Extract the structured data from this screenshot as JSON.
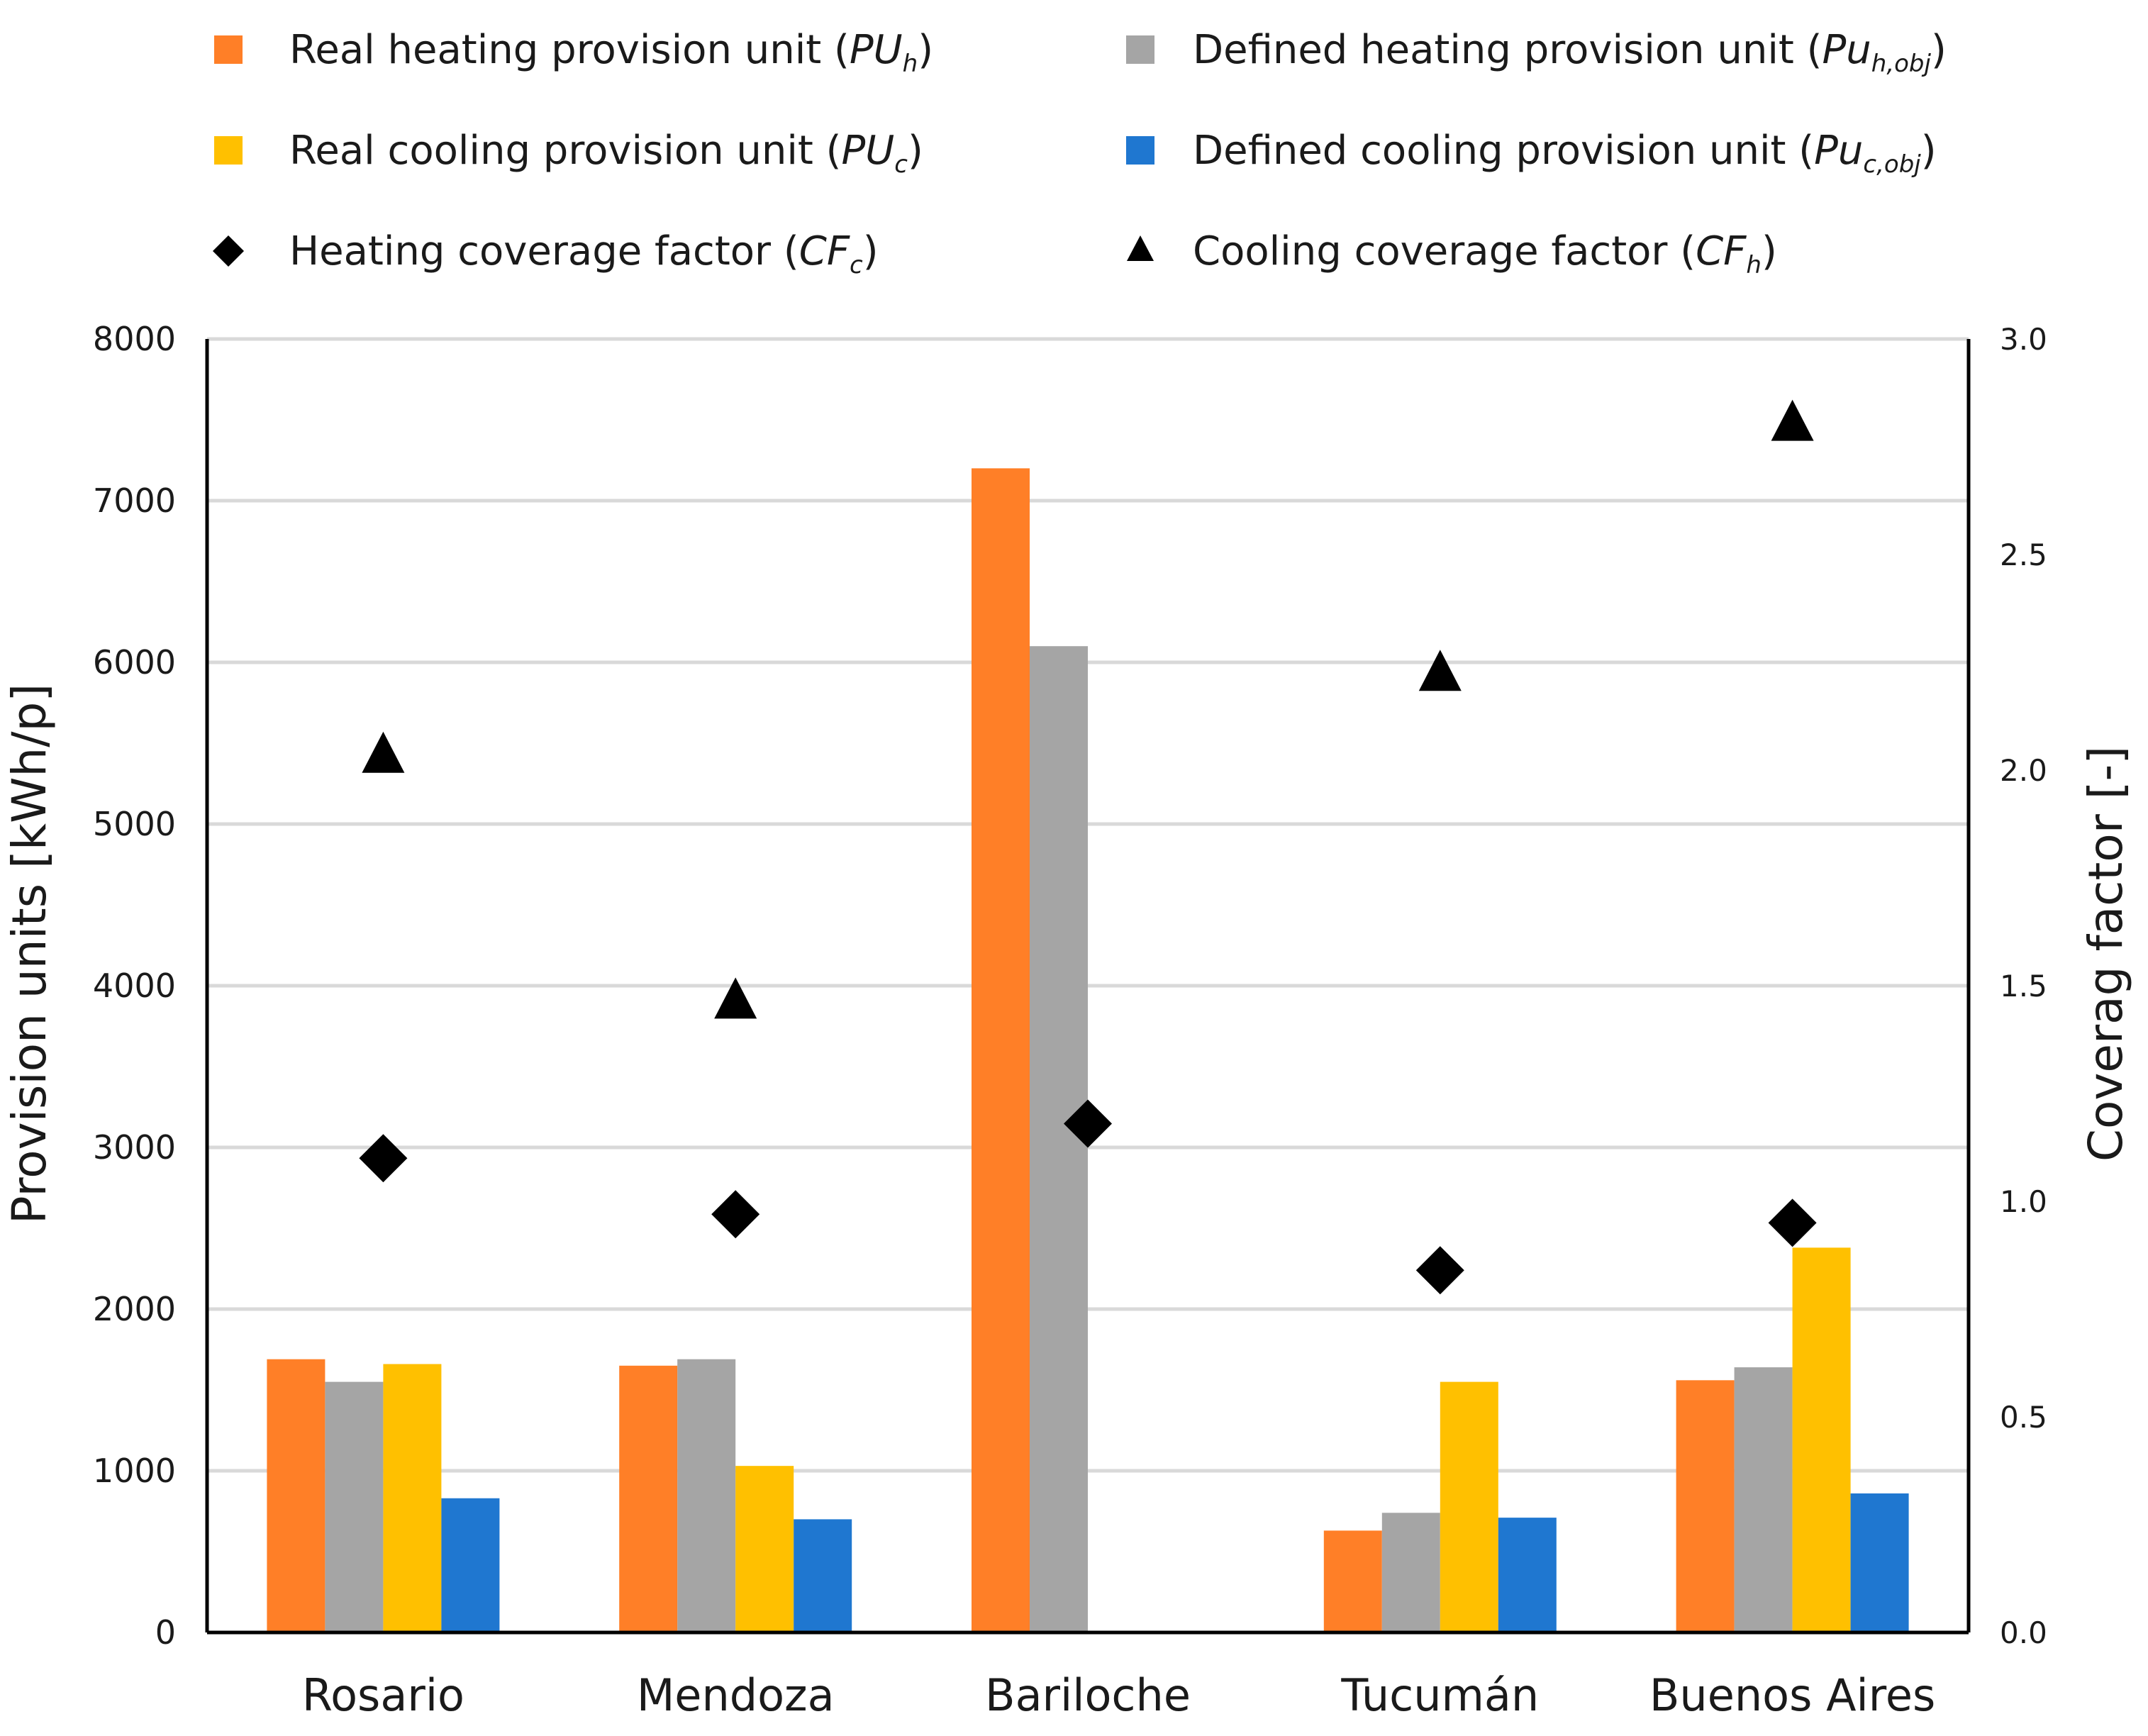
{
  "chart_data": {
    "type": "bar",
    "categories": [
      "Rosario",
      "Mendoza",
      "Bariloche",
      "Tucumán",
      "Buenos Aires"
    ],
    "series": [
      {
        "name": "Real heating provision unit",
        "symbol": "PU",
        "sub": "h",
        "kind": "bar",
        "axis": "left",
        "color": "#FF7F27",
        "values": [
          1690,
          1650,
          7200,
          630,
          1560
        ]
      },
      {
        "name": "Defined heating provision unit",
        "symbol": "Pu",
        "sub": "h,obj",
        "kind": "bar",
        "axis": "left",
        "color": "#A5A5A5",
        "values": [
          1550,
          1690,
          6100,
          740,
          1640
        ]
      },
      {
        "name": "Real cooling provision unit",
        "symbol": "PU",
        "sub": "c",
        "kind": "bar",
        "axis": "left",
        "color": "#FFC000",
        "values": [
          1660,
          1030,
          0,
          1550,
          2380
        ]
      },
      {
        "name": "Defined cooling provision unit",
        "symbol": "Pu",
        "sub": "c,obj",
        "kind": "bar",
        "axis": "left",
        "color": "#1F77D0",
        "values": [
          830,
          700,
          0,
          710,
          860
        ]
      },
      {
        "name": "Heating coverage factor",
        "symbol": "CF",
        "sub": "c",
        "kind": "diamond",
        "axis": "right",
        "color": "#000000",
        "values": [
          1.1,
          0.97,
          1.18,
          0.84,
          0.95
        ]
      },
      {
        "name": "Cooling coverage factor",
        "symbol": "CF",
        "sub": "h",
        "kind": "triangle",
        "axis": "right",
        "color": "#000000",
        "values": [
          2.03,
          1.46,
          null,
          2.22,
          2.8
        ]
      }
    ],
    "ylabel": "Provision units [kWh/p]",
    "ylabel_right": "Coverag factor [-]",
    "ylim": [
      0,
      8000
    ],
    "ylim_right": [
      0,
      3.0
    ],
    "yticks": [
      "0",
      "1000",
      "2000",
      "3000",
      "4000",
      "5000",
      "6000",
      "7000",
      "8000"
    ],
    "yticks_right": [
      "0.0",
      "0.5",
      "1.0",
      "1.5",
      "2.0",
      "2.5",
      "3.0"
    ],
    "grid": true,
    "legend_position": "top"
  }
}
